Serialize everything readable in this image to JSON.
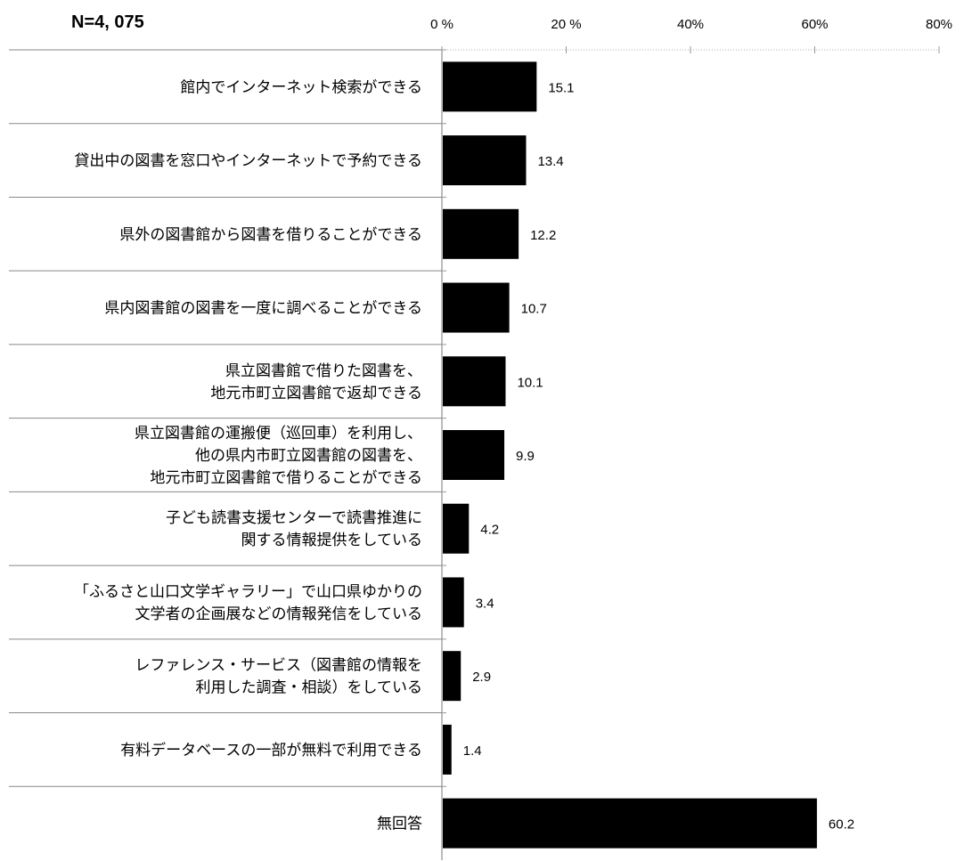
{
  "sample_size_label": "N=4, 075",
  "chart_data": {
    "type": "bar",
    "orientation": "horizontal",
    "xlim": [
      0,
      80
    ],
    "xticks": [
      0,
      20,
      40,
      60,
      80
    ],
    "xtick_labels": [
      "0 %",
      "20 %",
      "40%",
      "60%",
      "80%"
    ],
    "grid": false,
    "categories": [
      [
        "館内でインターネット検索ができる"
      ],
      [
        "貸出中の図書を窓口やインターネットで予約できる"
      ],
      [
        "県外の図書館から図書を借りることができる"
      ],
      [
        "県内図書館の図書を一度に調べることができる"
      ],
      [
        "県立図書館で借りた図書を、",
        "地元市町立図書館で返却できる"
      ],
      [
        "県立図書館の運搬便（巡回車）を利用し、",
        "他の県内市町立図書館の図書を、",
        "地元市町立図書館で借りることができる"
      ],
      [
        "子ども読書支援センターで読書推進に",
        "関する情報提供をしている"
      ],
      [
        "「ふるさと山口文学ギャラリー」で山口県ゆかりの",
        "文学者の企画展などの情報発信をしている"
      ],
      [
        "レファレンス・サービス（図書館の情報を",
        "利用した調査・相談）をしている"
      ],
      [
        "有料データベースの一部が無料で利用できる"
      ],
      [
        "無回答"
      ]
    ],
    "values": [
      15.1,
      13.4,
      12.2,
      10.7,
      10.1,
      9.9,
      4.2,
      3.4,
      2.9,
      1.4,
      60.2
    ],
    "value_labels": [
      "15.1",
      "13.4",
      "12.2",
      "10.7",
      "10.1",
      "9.9",
      "4.2",
      "3.4",
      "2.9",
      "1.4",
      "60.2"
    ],
    "bar_color": "#000000"
  }
}
